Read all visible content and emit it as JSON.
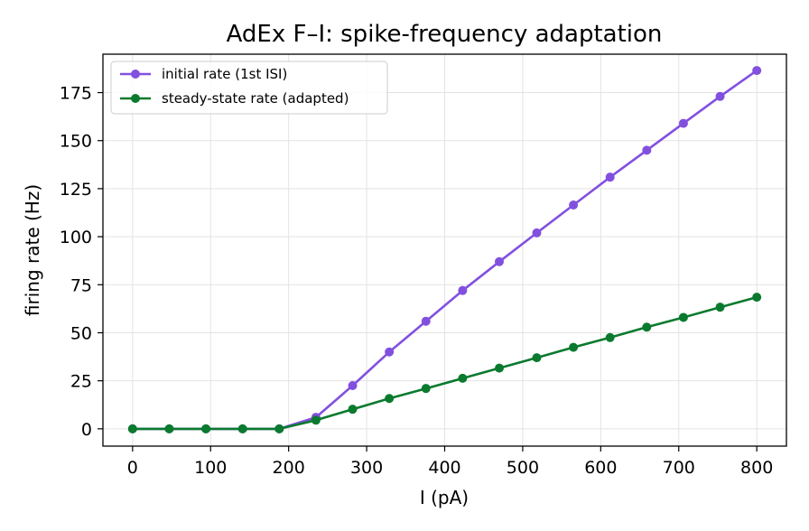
{
  "chart_data": {
    "type": "line",
    "title": "AdEx F–I: spike-frequency adaptation",
    "xlabel": "I (pA)",
    "ylabel": "firing rate (Hz)",
    "xlim": [
      -38,
      838
    ],
    "ylim": [
      -9,
      195
    ],
    "xticks": [
      0,
      100,
      200,
      300,
      400,
      500,
      600,
      700,
      800
    ],
    "yticks": [
      0,
      25,
      50,
      75,
      100,
      125,
      150,
      175
    ],
    "grid": true,
    "legend_position": "top-left",
    "x": [
      0,
      47,
      94,
      141,
      188,
      235,
      282,
      329,
      376,
      423,
      470,
      518,
      565,
      612,
      659,
      706,
      753,
      800
    ],
    "series": [
      {
        "name": "initial rate (1st ISI)",
        "color": "#8250df",
        "values": [
          0,
          0,
          0,
          0,
          0,
          6,
          22.5,
          40,
          56,
          72,
          87,
          102,
          116.5,
          131,
          145,
          159,
          173,
          186.5
        ]
      },
      {
        "name": "steady-state rate (adapted)",
        "color": "#0a7a2e",
        "values": [
          0,
          0,
          0,
          0,
          0,
          4.5,
          10.2,
          15.8,
          21,
          26.3,
          31.6,
          37,
          42.4,
          47.5,
          52.9,
          58,
          63.3,
          68.5
        ]
      }
    ]
  }
}
